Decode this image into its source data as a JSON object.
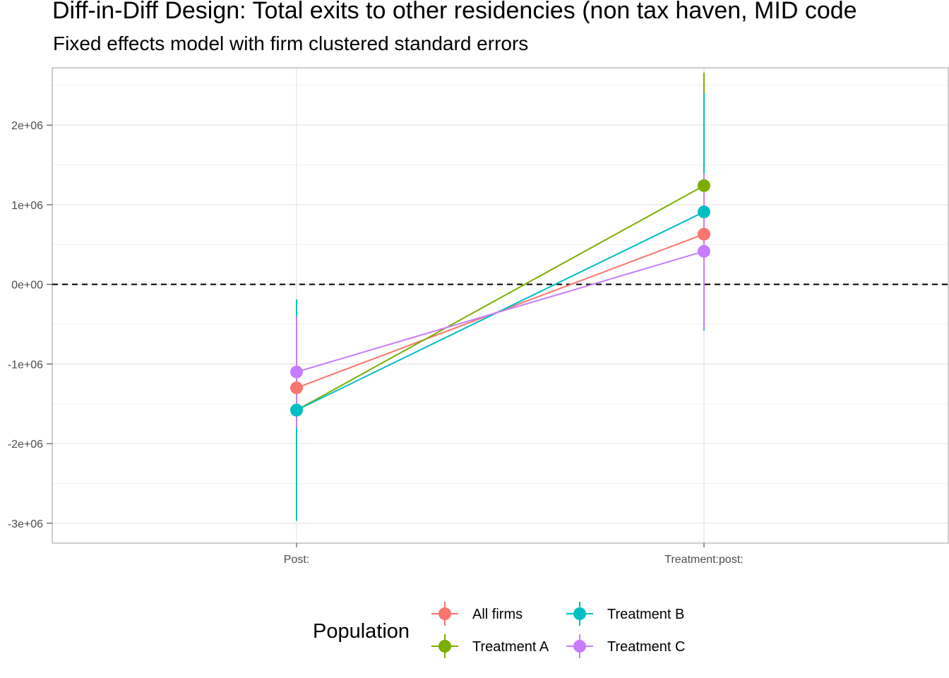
{
  "chart_data": {
    "type": "line",
    "title": "Diff-in-Diff Design: Total exits to other residencies (non tax haven, MID code",
    "subtitle": "Fixed effects model with firm clustered standard errors",
    "xlabel": "",
    "ylabel": "",
    "categories": [
      "Post:",
      "Treatment:post:"
    ],
    "ylim": [
      -3250000,
      2720000
    ],
    "yticks": [
      -3000000,
      -2000000,
      -1000000,
      0,
      1000000,
      2000000
    ],
    "ytick_labels": [
      "-3e+06",
      "-2e+06",
      "-1e+06",
      "0e+00",
      "1e+06",
      "2e+06"
    ],
    "reference_line": 0,
    "grid": true,
    "legend": {
      "title": "Population",
      "position": "bottom",
      "order": [
        "All firms",
        "Treatment B",
        "Treatment A",
        "Treatment C"
      ]
    },
    "series": [
      {
        "name": "All firms",
        "color": "#F8766D",
        "values": [
          -1300000,
          630000
        ],
        "lower": [
          -1980000,
          0
        ],
        "upper": [
          -620000,
          1260000
        ]
      },
      {
        "name": "Treatment A",
        "color": "#7CAE00",
        "values": [
          -1580000,
          1240000
        ],
        "lower": [
          -2970000,
          -180000
        ],
        "upper": [
          -190000,
          2660000
        ]
      },
      {
        "name": "Treatment B",
        "color": "#00BFC4",
        "values": [
          -1580000,
          910000
        ],
        "lower": [
          -2970000,
          -580000
        ],
        "upper": [
          -190000,
          2400000
        ]
      },
      {
        "name": "Treatment C",
        "color": "#C77CFF",
        "values": [
          -1100000,
          415000
        ],
        "lower": [
          -1800000,
          -560000
        ],
        "upper": [
          -400000,
          1390000
        ]
      }
    ]
  }
}
